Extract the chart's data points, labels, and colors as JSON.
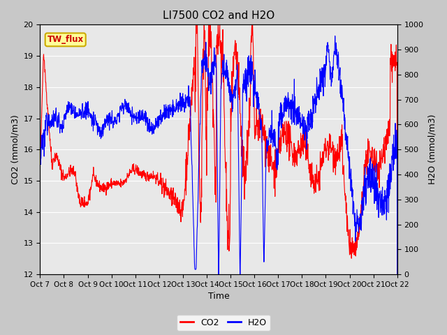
{
  "title": "LI7500 CO2 and H2O",
  "xlabel": "Time",
  "ylabel_left": "CO2 (mmol/m3)",
  "ylabel_right": "H2O (mmol/m3)",
  "annotation": "TW_flux",
  "ylim_left": [
    12.0,
    20.0
  ],
  "ylim_right": [
    0,
    1000
  ],
  "yticks_left": [
    12.0,
    13.0,
    14.0,
    15.0,
    16.0,
    17.0,
    18.0,
    19.0,
    20.0
  ],
  "yticks_right": [
    0,
    100,
    200,
    300,
    400,
    500,
    600,
    700,
    800,
    900,
    1000
  ],
  "xtick_labels": [
    "Oct 7",
    "Oct 8",
    "Oct 9",
    "Oct 10",
    "Oct 11",
    "Oct 12",
    "Oct 13",
    "Oct 14",
    "Oct 15",
    "Oct 16",
    "Oct 17",
    "Oct 18",
    "Oct 19",
    "Oct 20",
    "Oct 21",
    "Oct 22"
  ],
  "co2_color": "#FF0000",
  "h2o_color": "#0000FF",
  "fig_bg": "#C8C8C8",
  "plot_bg": "#E8E8E8",
  "annotation_bg": "#FFFF99",
  "annotation_border": "#CCAA00",
  "legend_co2": "CO2",
  "legend_h2o": "H2O",
  "linewidth": 0.8,
  "n_points": 1500
}
